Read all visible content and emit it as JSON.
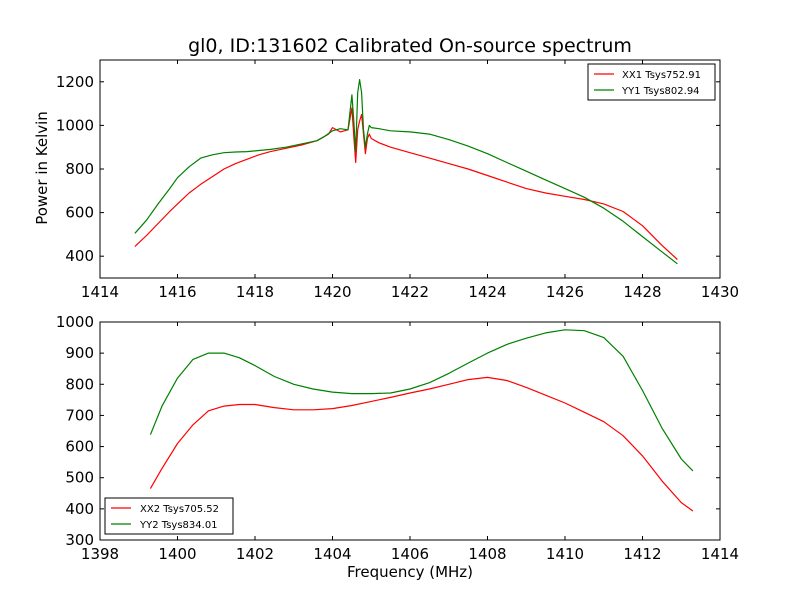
{
  "chart_data": [
    {
      "type": "line",
      "title": "gl0, ID:131602 Calibrated On-source spectrum",
      "xlabel": "",
      "ylabel": "Power in Kelvin",
      "xlim": [
        1414,
        1430
      ],
      "ylim": [
        300,
        1300
      ],
      "xticks": [
        1414,
        1416,
        1418,
        1420,
        1422,
        1424,
        1426,
        1428,
        1430
      ],
      "yticks": [
        400,
        600,
        800,
        1000,
        1200
      ],
      "grid": false,
      "legend_position": "upper-right",
      "series": [
        {
          "name": "XX1 Tsys752.91",
          "color": "#ff0000",
          "x": [
            1414.9,
            1415.2,
            1415.5,
            1415.8,
            1416.0,
            1416.3,
            1416.6,
            1416.9,
            1417.2,
            1417.5,
            1417.8,
            1418.1,
            1418.4,
            1418.8,
            1419.2,
            1419.6,
            1419.9,
            1420.0,
            1420.2,
            1420.4,
            1420.5,
            1420.55,
            1420.6,
            1420.65,
            1420.7,
            1420.75,
            1420.8,
            1420.85,
            1420.9,
            1420.95,
            1421.0,
            1421.2,
            1421.5,
            1422.0,
            1422.5,
            1423.0,
            1423.5,
            1424.0,
            1424.5,
            1425.0,
            1425.5,
            1426.0,
            1426.5,
            1427.0,
            1427.5,
            1428.0,
            1428.5,
            1428.9
          ],
          "y": [
            445,
            495,
            550,
            605,
            640,
            690,
            730,
            765,
            800,
            825,
            845,
            865,
            880,
            895,
            910,
            930,
            960,
            990,
            970,
            980,
            1080,
            950,
            830,
            980,
            1020,
            1050,
            960,
            870,
            940,
            960,
            940,
            920,
            900,
            875,
            850,
            825,
            800,
            770,
            740,
            710,
            690,
            675,
            660,
            640,
            605,
            540,
            450,
            385
          ]
        },
        {
          "name": "YY1 Tsys802.94",
          "color": "#008000",
          "x": [
            1414.9,
            1415.2,
            1415.5,
            1415.8,
            1416.0,
            1416.3,
            1416.6,
            1416.9,
            1417.2,
            1417.5,
            1417.8,
            1418.1,
            1418.4,
            1418.8,
            1419.2,
            1419.6,
            1419.8,
            1420.0,
            1420.2,
            1420.4,
            1420.5,
            1420.55,
            1420.6,
            1420.65,
            1420.7,
            1420.75,
            1420.8,
            1420.85,
            1420.9,
            1420.95,
            1421.0,
            1421.2,
            1421.5,
            1422.0,
            1422.5,
            1423.0,
            1423.5,
            1424.0,
            1424.5,
            1425.0,
            1425.5,
            1426.0,
            1426.5,
            1427.0,
            1427.5,
            1428.0,
            1428.5,
            1428.9
          ],
          "y": [
            505,
            565,
            640,
            710,
            760,
            810,
            850,
            865,
            875,
            878,
            880,
            885,
            890,
            900,
            915,
            930,
            950,
            975,
            985,
            980,
            1140,
            1020,
            880,
            1150,
            1210,
            1150,
            980,
            900,
            960,
            1000,
            990,
            985,
            975,
            970,
            960,
            935,
            905,
            870,
            830,
            790,
            750,
            710,
            670,
            620,
            560,
            490,
            420,
            365
          ]
        }
      ]
    },
    {
      "type": "line",
      "title": "",
      "xlabel": "Frequency (MHz)",
      "ylabel": "",
      "xlim": [
        1398,
        1414
      ],
      "ylim": [
        300,
        1000
      ],
      "xticks": [
        1398,
        1400,
        1402,
        1404,
        1406,
        1408,
        1410,
        1412,
        1414
      ],
      "yticks": [
        300,
        400,
        500,
        600,
        700,
        800,
        900,
        1000
      ],
      "grid": false,
      "legend_position": "lower-left",
      "series": [
        {
          "name": "XX2 Tsys705.52",
          "color": "#ff0000",
          "x": [
            1399.3,
            1399.6,
            1400.0,
            1400.4,
            1400.8,
            1401.2,
            1401.6,
            1402.0,
            1402.5,
            1403.0,
            1403.5,
            1404.0,
            1404.5,
            1405.0,
            1405.5,
            1406.0,
            1406.5,
            1407.0,
            1407.5,
            1408.0,
            1408.5,
            1409.0,
            1409.5,
            1410.0,
            1410.5,
            1411.0,
            1411.5,
            1412.0,
            1412.5,
            1413.0,
            1413.3
          ],
          "y": [
            465,
            530,
            610,
            670,
            715,
            730,
            735,
            735,
            725,
            718,
            718,
            722,
            732,
            745,
            758,
            772,
            785,
            800,
            815,
            822,
            812,
            790,
            765,
            740,
            710,
            680,
            635,
            570,
            490,
            420,
            393
          ]
        },
        {
          "name": "YY2 Tsys834.01",
          "color": "#008000",
          "x": [
            1399.3,
            1399.6,
            1400.0,
            1400.4,
            1400.8,
            1401.2,
            1401.6,
            1402.0,
            1402.5,
            1403.0,
            1403.5,
            1404.0,
            1404.5,
            1405.0,
            1405.5,
            1406.0,
            1406.5,
            1407.0,
            1407.5,
            1408.0,
            1408.5,
            1409.0,
            1409.5,
            1410.0,
            1410.5,
            1411.0,
            1411.5,
            1412.0,
            1412.5,
            1413.0,
            1413.3
          ],
          "y": [
            638,
            730,
            820,
            880,
            900,
            900,
            885,
            860,
            825,
            800,
            785,
            775,
            770,
            770,
            772,
            785,
            805,
            835,
            868,
            900,
            928,
            948,
            965,
            975,
            972,
            950,
            890,
            780,
            660,
            560,
            522
          ]
        }
      ]
    }
  ]
}
